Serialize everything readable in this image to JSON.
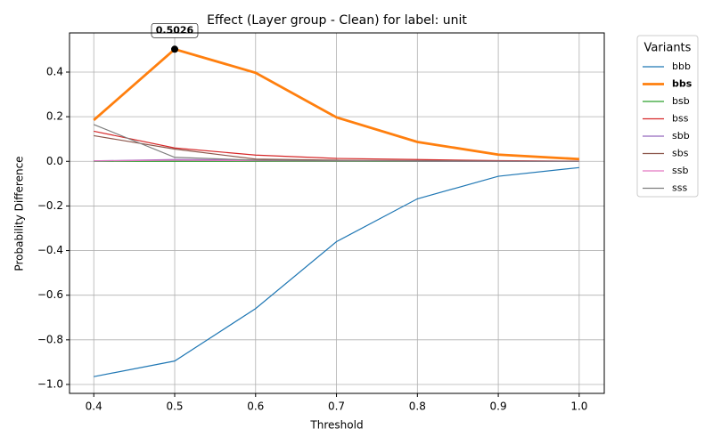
{
  "chart_data": {
    "type": "line",
    "title": "Effect (Layer group - Clean) for label: unit",
    "x_label": "Threshold",
    "y_label": "Probability Difference",
    "legend_title": "Variants",
    "legend_position": "outside right",
    "grid": true,
    "x": [
      0.4,
      0.5,
      0.6,
      0.7,
      0.8,
      0.9,
      1.0
    ],
    "xlim": [
      0.37,
      1.031
    ],
    "xticks": [
      0.4,
      0.5,
      0.6,
      0.7,
      0.8,
      0.9,
      {
        "value": 1.0,
        "label": "1.0"
      }
    ],
    "ylim": [
      -1.04,
      0.5755
    ],
    "yticks": [
      {
        "value": -1.0,
        "label": "−1.0"
      },
      {
        "value": -0.8,
        "label": "−0.8"
      },
      {
        "value": -0.6,
        "label": "−0.6"
      },
      {
        "value": -0.4,
        "label": "−0.4"
      },
      {
        "value": -0.2,
        "label": "−0.2"
      },
      {
        "value": 0,
        "label": "0.0"
      },
      0.2,
      0.4
    ],
    "series": [
      {
        "name": "bbb",
        "color": "#1f77b4",
        "linewidth": 1.2,
        "values": [
          -0.965,
          -0.895,
          -0.66,
          -0.36,
          -0.168,
          -0.067,
          -0.028
        ]
      },
      {
        "name": "bbs",
        "color": "#ff7f0e",
        "linewidth": 2.8,
        "highlight": true,
        "values": [
          0.185,
          0.5026,
          0.397,
          0.197,
          0.087,
          0.03,
          0.01
        ],
        "value_labels": [
          null,
          "0.5026",
          null,
          null,
          null,
          null,
          null
        ]
      },
      {
        "name": "bsb",
        "color": "#2ca02c",
        "linewidth": 1.2,
        "values": [
          0,
          0,
          0,
          0,
          0,
          0,
          0
        ]
      },
      {
        "name": "bss",
        "color": "#d62728",
        "linewidth": 1.2,
        "values": [
          0.135,
          0.06,
          0.028,
          0.013,
          0.008,
          0.003,
          0.001
        ]
      },
      {
        "name": "sbb",
        "color": "#9467bd",
        "linewidth": 1.2,
        "values": [
          0.002,
          0.008,
          0.005,
          0.003,
          0.001,
          0,
          0
        ]
      },
      {
        "name": "sbs",
        "color": "#8c564b",
        "linewidth": 1.2,
        "values": [
          0.115,
          0.055,
          0.01,
          0.005,
          0.003,
          0.001,
          0
        ]
      },
      {
        "name": "ssb",
        "color": "#e377c2",
        "linewidth": 1.2,
        "values": [
          0.002,
          0.005,
          0.003,
          0.002,
          0.001,
          0,
          0
        ]
      },
      {
        "name": "sss",
        "color": "#7f7f7f",
        "linewidth": 1.2,
        "values": [
          0.165,
          0.018,
          0.005,
          0.002,
          0.001,
          0,
          0
        ]
      }
    ]
  }
}
